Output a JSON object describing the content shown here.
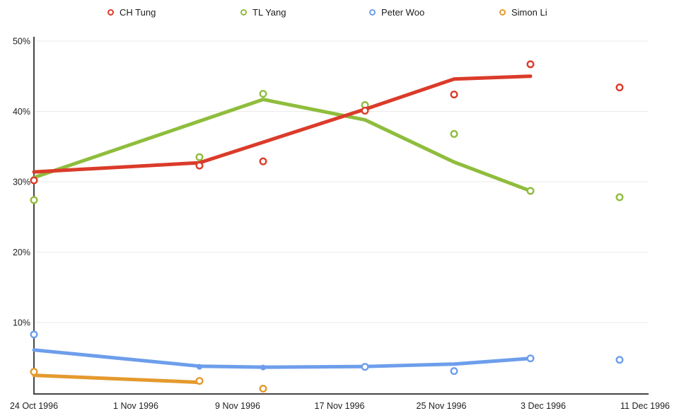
{
  "chart_data": {
    "type": "line",
    "title": "",
    "xlabel": "",
    "ylabel": "",
    "grid": true,
    "legend_position": "top",
    "x_axis": {
      "unit": "days since 24 Oct 1996",
      "ticks": [
        {
          "label": "24 Oct 1996",
          "day": 0
        },
        {
          "label": "1 Nov 1996",
          "day": 8
        },
        {
          "label": "9 Nov 1996",
          "day": 16
        },
        {
          "label": "17 Nov 1996",
          "day": 24
        },
        {
          "label": "25 Nov 1996",
          "day": 32
        },
        {
          "label": "3 Dec 1996",
          "day": 40
        },
        {
          "label": "11 Dec 1996",
          "day": 48
        }
      ]
    },
    "y_axis": {
      "range": [
        0,
        50
      ],
      "ticks": [
        {
          "label": "50%",
          "value": 50
        },
        {
          "label": "40%",
          "value": 40
        },
        {
          "label": "30%",
          "value": 30
        },
        {
          "label": "20%",
          "value": 20
        },
        {
          "label": "10%",
          "value": 10
        }
      ]
    },
    "series": [
      {
        "name": "CH Tung",
        "color": "#db3b2a",
        "scatter": [
          {
            "day": 0,
            "pct": 30.2
          },
          {
            "day": 13,
            "pct": 32.3
          },
          {
            "day": 18,
            "pct": 32.9
          },
          {
            "day": 26,
            "pct": 40.1
          },
          {
            "day": 33,
            "pct": 42.4
          },
          {
            "day": 39,
            "pct": 46.7
          },
          {
            "day": 46,
            "pct": 43.4
          }
        ],
        "trend": [
          {
            "day": 0,
            "pct": 31.4
          },
          {
            "day": 13,
            "pct": 32.7
          },
          {
            "day": 26,
            "pct": 40.3
          },
          {
            "day": 33,
            "pct": 44.6
          },
          {
            "day": 39,
            "pct": 45.0
          }
        ]
      },
      {
        "name": "TL Yang",
        "color": "#8fbd3d",
        "scatter": [
          {
            "day": 0,
            "pct": 27.4
          },
          {
            "day": 13,
            "pct": 33.5
          },
          {
            "day": 18,
            "pct": 42.5
          },
          {
            "day": 26,
            "pct": 40.9
          },
          {
            "day": 33,
            "pct": 36.8
          },
          {
            "day": 39,
            "pct": 28.7
          },
          {
            "day": 46,
            "pct": 27.8
          }
        ],
        "trend": [
          {
            "day": 0,
            "pct": 30.6
          },
          {
            "day": 18,
            "pct": 41.7
          },
          {
            "day": 26,
            "pct": 38.8
          },
          {
            "day": 33,
            "pct": 32.8
          },
          {
            "day": 39,
            "pct": 28.7
          }
        ]
      },
      {
        "name": "Peter Woo",
        "color": "#6d9eeb",
        "scatter": [
          {
            "day": 0,
            "pct": 8.3
          },
          {
            "day": 13,
            "pct": 3.7,
            "marker": "filled"
          },
          {
            "day": 18,
            "pct": 3.6,
            "marker": "filled"
          },
          {
            "day": 26,
            "pct": 3.7
          },
          {
            "day": 33,
            "pct": 3.1
          },
          {
            "day": 39,
            "pct": 4.9
          },
          {
            "day": 46,
            "pct": 4.7
          }
        ],
        "trend": [
          {
            "day": 0,
            "pct": 6.1
          },
          {
            "day": 13,
            "pct": 3.8
          },
          {
            "day": 18,
            "pct": 3.65
          },
          {
            "day": 26,
            "pct": 3.75
          },
          {
            "day": 33,
            "pct": 4.1
          },
          {
            "day": 39,
            "pct": 4.9
          }
        ]
      },
      {
        "name": "Simon Li",
        "color": "#e49a2d",
        "scatter": [
          {
            "day": 0,
            "pct": 3.0
          },
          {
            "day": 13,
            "pct": 1.7
          },
          {
            "day": 18,
            "pct": 0.6
          }
        ],
        "trend": [
          {
            "day": 0,
            "pct": 2.5
          },
          {
            "day": 13,
            "pct": 1.5
          }
        ]
      }
    ],
    "colors": {
      "gridline": "#ebebeb",
      "axis": "#454545",
      "tick_text": "#1e1e1e"
    }
  }
}
